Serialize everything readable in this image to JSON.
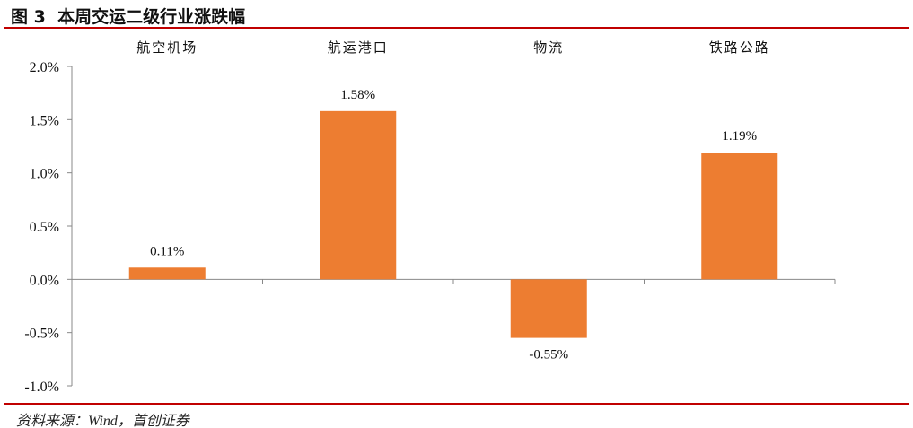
{
  "title": "图 3  本周交运二级行业涨跌幅",
  "source": "资料来源：Wind，首创证券",
  "colors": {
    "bar": "#ED7D31",
    "rule": "#C00000"
  },
  "chart_data": {
    "type": "bar",
    "categories": [
      "航空机场",
      "航运港口",
      "物流",
      "铁路公路"
    ],
    "values": [
      0.11,
      1.58,
      -0.55,
      1.19
    ],
    "data_labels": [
      "0.11%",
      "1.58%",
      "-0.55%",
      "1.19%"
    ],
    "ylim": [
      -1.0,
      2.0
    ],
    "yticks": [
      2.0,
      1.5,
      1.0,
      0.5,
      0.0,
      -0.5,
      -1.0
    ],
    "ytick_labels": [
      "2.0%",
      "1.5%",
      "1.0%",
      "0.5%",
      "0.0%",
      "-0.5%",
      "-1.0%"
    ],
    "category_axis_position": "top",
    "grid": false,
    "legend": "none"
  }
}
